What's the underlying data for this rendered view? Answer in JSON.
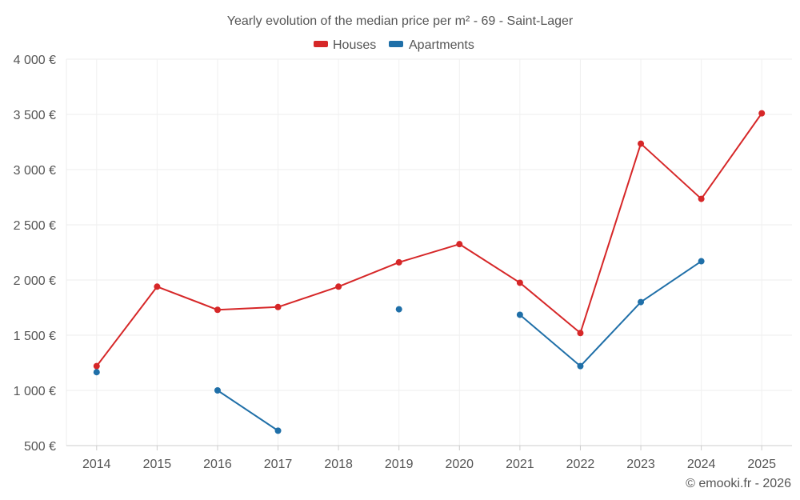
{
  "chart_data": {
    "type": "line",
    "title": "Yearly evolution of the median price per m² - 69 - Saint-Lager",
    "categories": [
      "2014",
      "2015",
      "2016",
      "2017",
      "2018",
      "2019",
      "2020",
      "2021",
      "2022",
      "2023",
      "2024",
      "2025"
    ],
    "y_ticks": [
      500,
      1000,
      1500,
      2000,
      2500,
      3000,
      3500,
      4000
    ],
    "y_tick_labels": [
      "500 €",
      "1 000 €",
      "1 500 €",
      "2 000 €",
      "2 500 €",
      "3 000 €",
      "3 500 €",
      "4 000 €"
    ],
    "ylim": [
      500,
      4000
    ],
    "grid": true,
    "legend_position": "top-center",
    "series": [
      {
        "name": "Houses",
        "color": "#d62728",
        "values": [
          1220,
          1940,
          1730,
          1755,
          1940,
          2160,
          2325,
          1975,
          1520,
          3235,
          2735,
          3510
        ]
      },
      {
        "name": "Apartments",
        "color": "#1f6fa8",
        "values": [
          1165,
          null,
          1000,
          635,
          null,
          1735,
          null,
          1685,
          1220,
          1800,
          2170,
          null
        ]
      }
    ],
    "copyright": "© emooki.fr - 2026"
  }
}
